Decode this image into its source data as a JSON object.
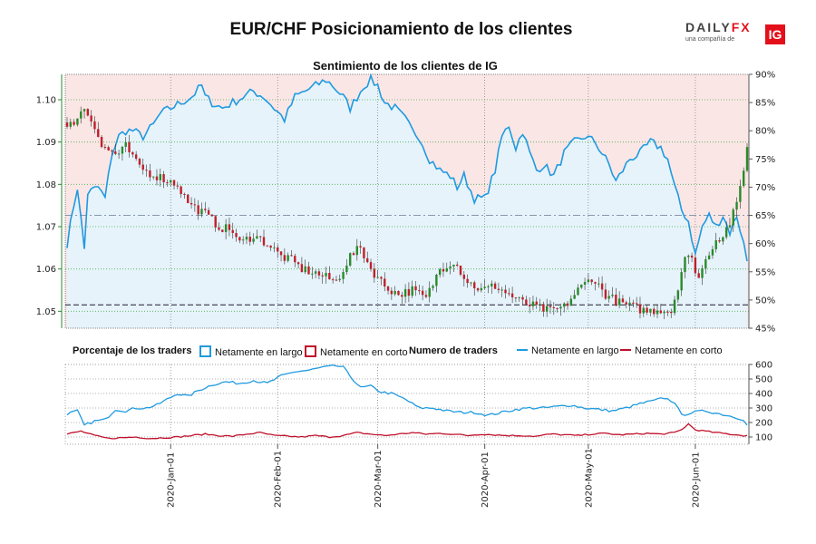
{
  "title": "EUR/CHF Posicionamiento de los clientes",
  "subtitle": "Sentimiento de los clientes de IG",
  "logo": {
    "brand_main": "DAILY",
    "brand_accent": "FX",
    "tagline": "una compañía de",
    "ig": "IG"
  },
  "legend": {
    "pct_title": "Porcentaje de los traders",
    "long_label": "Netamente en largo",
    "short_label": "Netamente en corto",
    "num_title": "Numero de traders",
    "long_label2": "Netamente en largo",
    "short_label2": "Netamente en corto"
  },
  "colors": {
    "long": "#1f9ae0",
    "short": "#c0102a",
    "up": "#2a8a2a",
    "down": "#c0202a",
    "bg_short": "#fbe6e6",
    "bg_long": "#e6f3fb"
  },
  "chart_data": {
    "type": "candlestick+line",
    "price_axis": {
      "ticks": [
        "1.05",
        "1.06",
        "1.07",
        "1.08",
        "1.09",
        "1.10"
      ],
      "ylim": [
        1.046,
        1.106
      ]
    },
    "pct_axis": {
      "ticks": [
        "45%",
        "50%",
        "55%",
        "60%",
        "65%",
        "70%",
        "75%",
        "80%",
        "85%",
        "90%"
      ],
      "ylim": [
        45,
        90
      ]
    },
    "count_axis": {
      "ticks": [
        "100",
        "200",
        "300",
        "400",
        "500",
        "600"
      ],
      "ylim": [
        50,
        600
      ]
    },
    "x_dates": [
      "2020-Jan-01",
      "2020-Feb-01",
      "2020-Mar-01",
      "2020-Apr-01",
      "2020-May-01",
      "2020-Jun-01"
    ],
    "reference_lines": {
      "price": 1.0515,
      "pct": 65
    },
    "pct_long_anchors": [
      [
        0,
        60
      ],
      [
        2,
        67
      ],
      [
        3,
        70
      ],
      [
        5,
        59
      ],
      [
        6,
        69
      ],
      [
        9,
        70
      ],
      [
        11,
        68
      ],
      [
        13,
        76
      ],
      [
        15,
        79
      ],
      [
        17,
        80
      ],
      [
        19,
        80
      ],
      [
        22,
        79
      ],
      [
        25,
        81
      ],
      [
        27,
        83
      ],
      [
        30,
        84
      ],
      [
        33,
        85
      ],
      [
        36,
        86
      ],
      [
        39,
        88
      ],
      [
        40,
        86
      ],
      [
        42,
        85
      ],
      [
        45,
        84
      ],
      [
        48,
        85
      ],
      [
        51,
        86
      ],
      [
        54,
        87
      ],
      [
        57,
        86
      ],
      [
        60,
        84
      ],
      [
        63,
        82
      ],
      [
        66,
        86
      ],
      [
        69,
        87
      ],
      [
        72,
        88
      ],
      [
        75,
        89
      ],
      [
        77,
        88
      ],
      [
        80,
        86
      ],
      [
        82,
        84
      ],
      [
        84,
        86
      ],
      [
        86,
        88
      ],
      [
        88,
        89
      ],
      [
        90,
        88
      ],
      [
        92,
        85
      ],
      [
        95,
        84
      ],
      [
        98,
        82
      ],
      [
        100,
        80
      ],
      [
        102,
        79
      ],
      [
        105,
        75
      ],
      [
        108,
        73
      ],
      [
        111,
        72
      ],
      [
        113,
        70
      ],
      [
        115,
        72
      ],
      [
        118,
        68
      ],
      [
        121,
        68
      ],
      [
        124,
        73
      ],
      [
        126,
        79
      ],
      [
        128,
        81
      ],
      [
        130,
        77
      ],
      [
        132,
        80
      ],
      [
        134,
        76
      ],
      [
        136,
        73
      ],
      [
        138,
        74
      ],
      [
        141,
        72
      ],
      [
        144,
        76
      ],
      [
        147,
        78
      ],
      [
        150,
        79
      ],
      [
        153,
        78
      ],
      [
        155,
        76
      ],
      [
        157,
        74
      ],
      [
        159,
        71
      ],
      [
        161,
        73
      ],
      [
        163,
        75
      ],
      [
        166,
        76
      ],
      [
        169,
        78
      ],
      [
        172,
        77
      ],
      [
        174,
        75
      ],
      [
        176,
        70
      ],
      [
        178,
        66
      ],
      [
        180,
        64
      ],
      [
        182,
        58
      ],
      [
        184,
        63
      ],
      [
        186,
        65
      ],
      [
        188,
        63
      ],
      [
        190,
        65
      ],
      [
        192,
        62
      ],
      [
        194,
        65
      ],
      [
        196,
        60
      ],
      [
        197,
        57
      ]
    ],
    "count_long_anchors": [
      [
        0,
        260
      ],
      [
        3,
        280
      ],
      [
        5,
        180
      ],
      [
        8,
        210
      ],
      [
        11,
        220
      ],
      [
        14,
        290
      ],
      [
        17,
        280
      ],
      [
        20,
        300
      ],
      [
        23,
        300
      ],
      [
        26,
        320
      ],
      [
        29,
        360
      ],
      [
        32,
        400
      ],
      [
        35,
        380
      ],
      [
        38,
        420
      ],
      [
        42,
        460
      ],
      [
        46,
        480
      ],
      [
        50,
        470
      ],
      [
        54,
        490
      ],
      [
        58,
        470
      ],
      [
        62,
        520
      ],
      [
        66,
        550
      ],
      [
        70,
        560
      ],
      [
        74,
        580
      ],
      [
        78,
        590
      ],
      [
        80,
        580
      ],
      [
        82,
        520
      ],
      [
        85,
        440
      ],
      [
        88,
        450
      ],
      [
        91,
        410
      ],
      [
        94,
        400
      ],
      [
        98,
        360
      ],
      [
        102,
        300
      ],
      [
        106,
        300
      ],
      [
        110,
        280
      ],
      [
        114,
        270
      ],
      [
        118,
        270
      ],
      [
        122,
        250
      ],
      [
        126,
        270
      ],
      [
        130,
        290
      ],
      [
        134,
        300
      ],
      [
        138,
        300
      ],
      [
        142,
        310
      ],
      [
        146,
        320
      ],
      [
        150,
        300
      ],
      [
        154,
        290
      ],
      [
        158,
        280
      ],
      [
        162,
        300
      ],
      [
        166,
        330
      ],
      [
        170,
        350
      ],
      [
        173,
        370
      ],
      [
        176,
        340
      ],
      [
        178,
        250
      ],
      [
        181,
        270
      ],
      [
        185,
        280
      ],
      [
        189,
        260
      ],
      [
        193,
        240
      ],
      [
        196,
        220
      ],
      [
        197,
        180
      ]
    ],
    "count_short_anchors": [
      [
        0,
        120
      ],
      [
        4,
        140
      ],
      [
        8,
        110
      ],
      [
        12,
        90
      ],
      [
        16,
        95
      ],
      [
        20,
        100
      ],
      [
        24,
        90
      ],
      [
        28,
        95
      ],
      [
        32,
        100
      ],
      [
        36,
        110
      ],
      [
        40,
        120
      ],
      [
        44,
        110
      ],
      [
        48,
        105
      ],
      [
        52,
        120
      ],
      [
        56,
        130
      ],
      [
        60,
        110
      ],
      [
        64,
        105
      ],
      [
        68,
        100
      ],
      [
        72,
        110
      ],
      [
        76,
        100
      ],
      [
        80,
        110
      ],
      [
        84,
        130
      ],
      [
        88,
        120
      ],
      [
        92,
        110
      ],
      [
        96,
        120
      ],
      [
        100,
        130
      ],
      [
        104,
        120
      ],
      [
        108,
        125
      ],
      [
        112,
        120
      ],
      [
        116,
        110
      ],
      [
        120,
        120
      ],
      [
        124,
        115
      ],
      [
        128,
        110
      ],
      [
        132,
        110
      ],
      [
        136,
        105
      ],
      [
        140,
        120
      ],
      [
        144,
        115
      ],
      [
        148,
        110
      ],
      [
        152,
        120
      ],
      [
        156,
        125
      ],
      [
        160,
        115
      ],
      [
        164,
        120
      ],
      [
        168,
        125
      ],
      [
        172,
        120
      ],
      [
        176,
        130
      ],
      [
        178,
        150
      ],
      [
        180,
        190
      ],
      [
        182,
        150
      ],
      [
        185,
        140
      ],
      [
        188,
        130
      ],
      [
        192,
        120
      ],
      [
        196,
        110
      ],
      [
        197,
        110
      ]
    ],
    "price_close_anchors": [
      [
        0,
        1.093
      ],
      [
        2,
        1.095
      ],
      [
        5,
        1.098
      ],
      [
        8,
        1.094
      ],
      [
        10,
        1.089
      ],
      [
        12,
        1.088
      ],
      [
        15,
        1.087
      ],
      [
        17,
        1.089
      ],
      [
        20,
        1.085
      ],
      [
        23,
        1.083
      ],
      [
        26,
        1.082
      ],
      [
        29,
        1.081
      ],
      [
        32,
        1.08
      ],
      [
        34,
        1.077
      ],
      [
        36,
        1.075
      ],
      [
        40,
        1.073
      ],
      [
        44,
        1.07
      ],
      [
        48,
        1.069
      ],
      [
        50,
        1.066
      ],
      [
        54,
        1.068
      ],
      [
        58,
        1.066
      ],
      [
        62,
        1.063
      ],
      [
        65,
        1.062
      ],
      [
        68,
        1.06
      ],
      [
        72,
        1.059
      ],
      [
        75,
        1.058
      ],
      [
        78,
        1.057
      ],
      [
        82,
        1.063
      ],
      [
        85,
        1.065
      ],
      [
        88,
        1.06
      ],
      [
        92,
        1.056
      ],
      [
        96,
        1.054
      ],
      [
        100,
        1.055
      ],
      [
        104,
        1.053
      ],
      [
        108,
        1.06
      ],
      [
        112,
        1.062
      ],
      [
        116,
        1.057
      ],
      [
        120,
        1.055
      ],
      [
        124,
        1.056
      ],
      [
        128,
        1.054
      ],
      [
        132,
        1.052
      ],
      [
        136,
        1.051
      ],
      [
        140,
        1.05
      ],
      [
        144,
        1.051
      ],
      [
        148,
        1.055
      ],
      [
        152,
        1.058
      ],
      [
        156,
        1.054
      ],
      [
        160,
        1.052
      ],
      [
        164,
        1.051
      ],
      [
        168,
        1.05
      ],
      [
        172,
        1.0505
      ],
      [
        175,
        1.05
      ],
      [
        177,
        1.056
      ],
      [
        179,
        1.063
      ],
      [
        181,
        1.062
      ],
      [
        183,
        1.058
      ],
      [
        186,
        1.064
      ],
      [
        188,
        1.067
      ],
      [
        190,
        1.068
      ],
      [
        192,
        1.071
      ],
      [
        194,
        1.075
      ],
      [
        196,
        1.084
      ],
      [
        197,
        1.089
      ]
    ]
  }
}
